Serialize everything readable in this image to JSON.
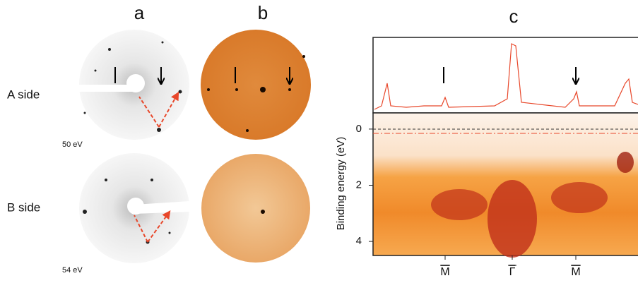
{
  "panels": {
    "a": "a",
    "b": "b",
    "c": "c"
  },
  "rows": [
    {
      "label": "A side",
      "energy": "50 eV"
    },
    {
      "label": "B side",
      "energy": "54 eV"
    }
  ],
  "panel_c": {
    "ylabel": "Binding energy (eV)",
    "ylim": [
      -0.5,
      4.5
    ],
    "yticks": [
      0,
      2,
      4
    ],
    "xlabels": [
      "M",
      "Γ",
      "M"
    ]
  }
}
